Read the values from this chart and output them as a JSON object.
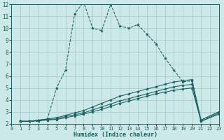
{
  "xlabel": "Humidex (Indice chaleur)",
  "bg_color": "#cce8e8",
  "line_color": "#1a5f5f",
  "grid_color": "#aacece",
  "xlim": [
    0,
    23
  ],
  "ylim": [
    2,
    12
  ],
  "xticks": [
    0,
    1,
    2,
    3,
    4,
    5,
    6,
    7,
    8,
    9,
    10,
    11,
    12,
    13,
    14,
    15,
    16,
    17,
    18,
    19,
    20,
    21,
    22,
    23
  ],
  "yticks": [
    2,
    3,
    4,
    5,
    6,
    7,
    8,
    9,
    10,
    11,
    12
  ],
  "series": [
    {
      "x": [
        1,
        2,
        3,
        4,
        5,
        6,
        7,
        8,
        9,
        10,
        11,
        12,
        13,
        14,
        15,
        16,
        17,
        18,
        19,
        20,
        21,
        23
      ],
      "y": [
        2.2,
        2.2,
        2.2,
        2.4,
        5.0,
        6.5,
        11.2,
        12.2,
        10.0,
        9.8,
        12.0,
        10.2,
        10.0,
        10.3,
        9.5,
        8.7,
        7.5,
        6.5,
        5.5,
        5.6,
        2.3,
        3.0
      ],
      "dashed": true
    },
    {
      "x": [
        1,
        2,
        3,
        4,
        5,
        6,
        7,
        8,
        9,
        10,
        11,
        12,
        13,
        14,
        15,
        16,
        17,
        18,
        19,
        20,
        21,
        23
      ],
      "y": [
        2.2,
        2.2,
        2.3,
        2.4,
        2.5,
        2.7,
        2.9,
        3.1,
        3.4,
        3.7,
        4.0,
        4.3,
        4.5,
        4.7,
        4.9,
        5.1,
        5.3,
        5.5,
        5.6,
        5.7,
        2.3,
        3.0
      ],
      "dashed": false
    },
    {
      "x": [
        1,
        2,
        3,
        4,
        5,
        6,
        7,
        8,
        9,
        10,
        11,
        12,
        13,
        14,
        15,
        16,
        17,
        18,
        19,
        20,
        21,
        23
      ],
      "y": [
        2.2,
        2.2,
        2.3,
        2.35,
        2.4,
        2.6,
        2.75,
        2.9,
        3.15,
        3.4,
        3.65,
        3.9,
        4.1,
        4.3,
        4.5,
        4.7,
        4.9,
        5.1,
        5.2,
        5.3,
        2.2,
        2.9
      ],
      "dashed": false
    },
    {
      "x": [
        1,
        2,
        3,
        4,
        5,
        6,
        7,
        8,
        9,
        10,
        11,
        12,
        13,
        14,
        15,
        16,
        17,
        18,
        19,
        20,
        21,
        23
      ],
      "y": [
        2.2,
        2.2,
        2.25,
        2.3,
        2.35,
        2.5,
        2.65,
        2.8,
        3.0,
        3.2,
        3.45,
        3.7,
        3.9,
        4.1,
        4.3,
        4.5,
        4.65,
        4.8,
        4.9,
        5.0,
        2.2,
        2.8
      ],
      "dashed": false
    }
  ]
}
